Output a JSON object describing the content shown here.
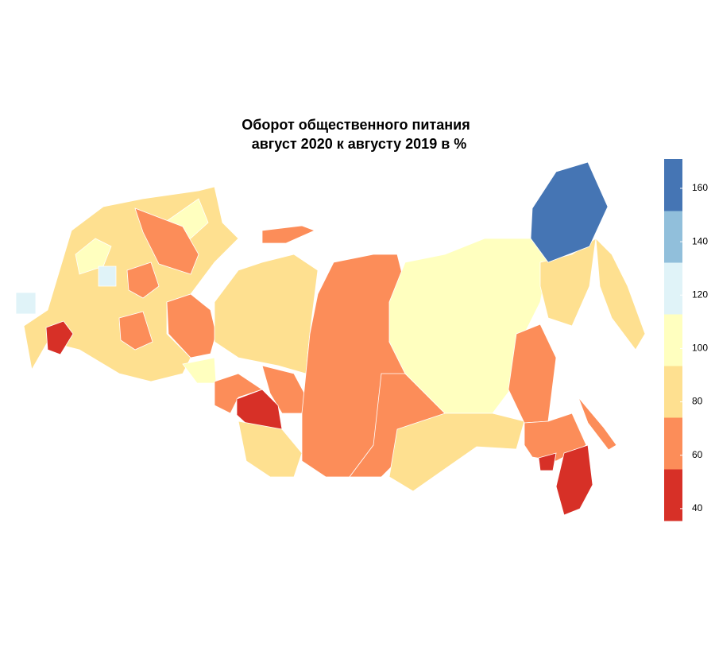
{
  "title": "Оборот общественного питания",
  "subtitle": "август 2020 к августу 2019 в %",
  "legend": {
    "lim": [
      35.5,
      171
    ],
    "ticks": [
      40,
      60,
      80,
      100,
      120,
      140,
      160
    ],
    "colors": [
      "#d73027",
      "#fc8d59",
      "#fee090",
      "#ffffbf",
      "#e0f3f8",
      "#91bfdb",
      "#4575b4"
    ]
  }
}
